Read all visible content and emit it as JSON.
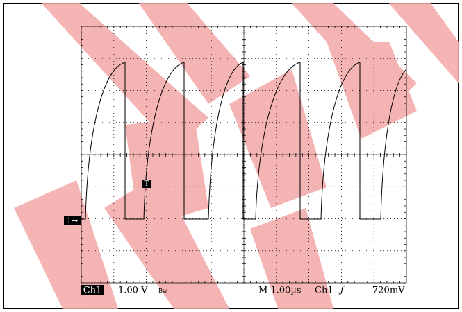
{
  "channel_marker": "1→",
  "trigger_marker": "T",
  "status": {
    "channel": "Ch1",
    "volts_per_div": "1.00 V",
    "bandwidth": "Bw",
    "timebase": "M 1.00µs",
    "trigger_source": "Ch1",
    "trigger_slope": "ƒ",
    "trigger_level": "720mV"
  }
}
